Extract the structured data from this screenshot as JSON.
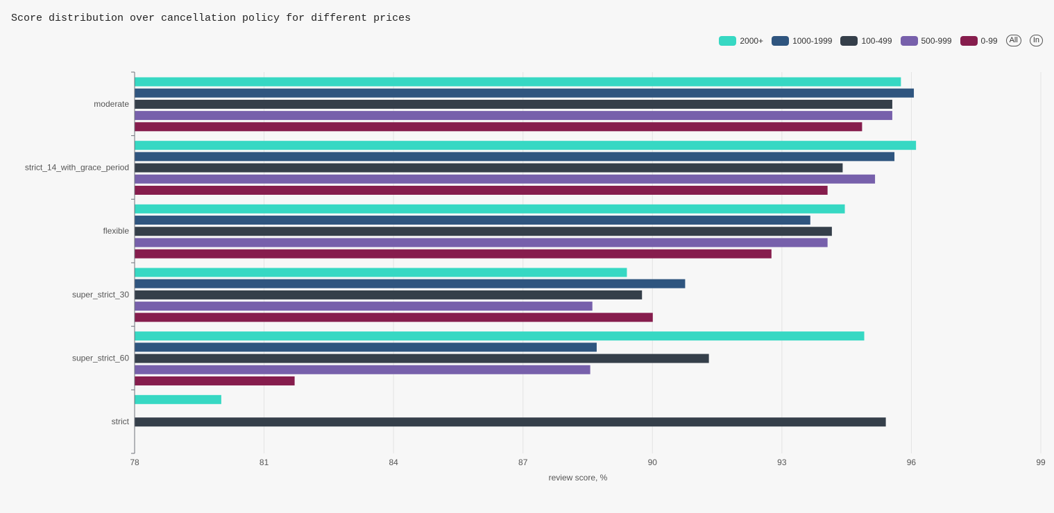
{
  "title": "Score distribution over cancellation policy for different prices",
  "legend": {
    "items": [
      {
        "label": "2000+",
        "color": "#37d8c3"
      },
      {
        "label": "1000-1999",
        "color": "#2f557f"
      },
      {
        "label": "100-499",
        "color": "#353f4a"
      },
      {
        "label": "500-999",
        "color": "#7760ab"
      },
      {
        "label": "0-99",
        "color": "#861d4d"
      }
    ],
    "all_label": "All",
    "inv_label": "In"
  },
  "chart_data": {
    "type": "bar",
    "orientation": "horizontal",
    "xlabel": "review score, %",
    "xlim": [
      78,
      99
    ],
    "xticks": [
      78,
      81,
      84,
      87,
      90,
      93,
      96,
      99
    ],
    "categories": [
      "moderate",
      "strict_14_with_grace_period",
      "flexible",
      "super_strict_30",
      "super_strict_60",
      "strict"
    ],
    "series": [
      {
        "name": "2000+",
        "color": "#37d8c3",
        "values": [
          95.75,
          96.1,
          94.45,
          89.4,
          94.9,
          80.0
        ]
      },
      {
        "name": "1000-1999",
        "color": "#2f557f",
        "values": [
          96.05,
          95.6,
          93.65,
          90.75,
          88.7,
          null
        ]
      },
      {
        "name": "100-499",
        "color": "#353f4a",
        "values": [
          95.55,
          94.4,
          94.15,
          89.75,
          91.3,
          95.4
        ]
      },
      {
        "name": "500-999",
        "color": "#7760ab",
        "values": [
          95.55,
          95.15,
          94.05,
          88.6,
          88.55,
          null
        ]
      },
      {
        "name": "0-99",
        "color": "#861d4d",
        "values": [
          94.85,
          94.05,
          92.75,
          90.0,
          81.7,
          null
        ]
      }
    ]
  }
}
